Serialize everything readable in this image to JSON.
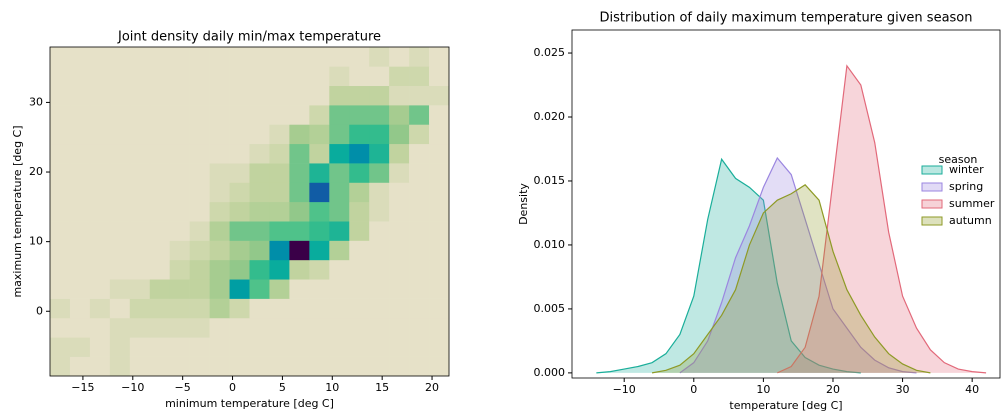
{
  "chart_data": [
    {
      "type": "heatmap",
      "title": "Joint density daily min/max temperature",
      "x_label": "minimum temperature [deg C]",
      "y_label": "maximum temperature [deg C]",
      "xlim": [
        -18.3,
        21.7
      ],
      "ylim": [
        -9.3,
        37.96
      ],
      "xticks": [
        {
          "value": -15,
          "label": "−15"
        },
        {
          "value": -10,
          "label": "−10"
        },
        {
          "value": -5,
          "label": "−5"
        },
        0,
        5,
        10,
        15,
        20
      ],
      "yticks": [
        0,
        10,
        20,
        30
      ],
      "x_bins": [
        -18.3,
        -16.3,
        -14.3,
        -12.3,
        -10.3,
        -8.3,
        -6.3,
        -4.3,
        -2.3,
        -0.3,
        1.7,
        3.7,
        5.7,
        7.7,
        9.7,
        11.7,
        13.7,
        15.7,
        17.7,
        19.7,
        21.7
      ],
      "y_bins": [
        -9.3,
        -6.52,
        -3.74,
        -0.96,
        1.82,
        4.6,
        7.38,
        10.16,
        12.94,
        15.72,
        18.5,
        21.28,
        24.06,
        26.84,
        29.62,
        32.4,
        35.18,
        37.96
      ],
      "colormap": [
        "#e6e1c8",
        "#c3d4a0",
        "#9cc98a",
        "#3cc08a",
        "#00a8a0",
        "#0078b0",
        "#1c4a9e",
        "#3a0048"
      ],
      "values": [
        [
          1,
          0,
          0,
          1,
          0,
          0,
          0,
          0,
          0,
          0,
          0,
          0,
          0,
          0,
          0,
          0,
          0,
          0,
          0,
          0
        ],
        [
          1,
          1,
          0,
          1,
          0,
          0,
          0,
          0,
          0,
          0,
          0,
          0,
          0,
          0,
          0,
          0,
          0,
          0,
          0,
          0
        ],
        [
          0,
          0,
          0,
          1,
          1,
          1,
          1,
          1,
          0,
          0,
          0,
          0,
          0,
          0,
          0,
          0,
          0,
          0,
          0,
          0
        ],
        [
          1,
          0,
          1,
          0,
          2,
          2,
          2,
          2,
          4,
          2,
          0,
          0,
          0,
          0,
          0,
          0,
          0,
          0,
          0,
          0
        ],
        [
          0,
          0,
          0,
          1,
          1,
          3,
          3,
          3,
          5,
          12,
          8,
          4,
          0,
          0,
          0,
          0,
          0,
          0,
          0,
          0
        ],
        [
          0,
          0,
          0,
          0,
          0,
          0,
          2,
          3,
          5,
          6,
          9,
          11,
          3,
          2,
          0,
          0,
          0,
          0,
          0,
          0
        ],
        [
          0,
          0,
          0,
          0,
          0,
          0,
          1,
          2,
          3,
          5,
          6,
          13,
          20,
          11,
          4,
          0,
          0,
          0,
          0,
          0
        ],
        [
          0,
          0,
          0,
          0,
          0,
          0,
          0,
          1,
          4,
          7,
          7,
          8,
          8,
          9,
          10,
          3,
          0,
          0,
          0,
          0
        ],
        [
          0,
          0,
          0,
          0,
          0,
          0,
          0,
          0,
          2,
          3,
          4,
          4,
          6,
          8,
          7,
          3,
          1,
          0,
          0,
          0
        ],
        [
          0,
          0,
          0,
          0,
          0,
          0,
          0,
          0,
          1,
          2,
          3,
          3,
          7,
          16,
          7,
          4,
          1,
          0,
          0,
          0
        ],
        [
          0,
          0,
          0,
          0,
          0,
          0,
          0,
          0,
          1,
          1,
          3,
          3,
          7,
          10,
          7,
          9,
          7,
          1,
          0,
          0
        ],
        [
          0,
          0,
          0,
          0,
          0,
          0,
          0,
          0,
          0,
          0,
          1,
          2,
          7,
          3,
          11,
          13,
          10,
          3,
          0,
          0
        ],
        [
          0,
          0,
          0,
          0,
          0,
          0,
          0,
          0,
          0,
          0,
          0,
          1,
          5,
          4,
          7,
          9,
          9,
          6,
          2,
          0
        ],
        [
          0,
          0,
          0,
          0,
          0,
          0,
          0,
          0,
          0,
          0,
          0,
          0,
          0,
          2,
          7,
          7,
          7,
          5,
          7,
          0
        ],
        [
          0,
          0,
          0,
          0,
          0,
          0,
          0,
          0,
          0,
          0,
          0,
          0,
          0,
          0,
          3,
          3,
          3,
          1,
          1,
          1
        ],
        [
          0,
          0,
          0,
          0,
          0,
          0,
          0,
          0,
          0,
          0,
          0,
          0,
          0,
          0,
          1,
          0,
          0,
          2,
          2,
          0
        ],
        [
          0,
          0,
          0,
          0,
          0,
          0,
          0,
          0,
          0,
          0,
          0,
          0,
          0,
          0,
          0,
          0,
          1,
          0,
          1,
          0
        ]
      ]
    },
    {
      "type": "kde",
      "title": "Distribution of daily maximum temperature given season",
      "x_label": "temperature [deg C]",
      "y_label": "Density",
      "xlim": [
        -17.5,
        44
      ],
      "ylim": [
        -0.0004,
        0.0268
      ],
      "xticks": [
        {
          "value": -10,
          "label": "−10"
        },
        0,
        10,
        20,
        30,
        40
      ],
      "yticks": [
        {
          "value": 0,
          "label": "0.000"
        },
        0.005,
        {
          "value": 0.01,
          "label": "0.010"
        },
        0.015,
        {
          "value": 0.02,
          "label": "0.020"
        },
        0.025
      ],
      "legend_title": "season",
      "legend": "center right",
      "x": [
        -14,
        -12,
        -10,
        -8,
        -6,
        -4,
        -2,
        0,
        2,
        4,
        6,
        8,
        10,
        12,
        14,
        16,
        18,
        20,
        22,
        24,
        26,
        28,
        30,
        32,
        34,
        36,
        38,
        40,
        42
      ],
      "series": [
        {
          "name": "winter",
          "color": "#1aae9a",
          "values": [
            0,
            0.0001,
            0.0003,
            0.0005,
            0.0008,
            0.0015,
            0.003,
            0.006,
            0.012,
            0.0167,
            0.0152,
            0.0145,
            0.0135,
            0.007,
            0.0025,
            0.0012,
            0.0006,
            0.0003,
            0.0001,
            0,
            null,
            null,
            null,
            null,
            null,
            null,
            null,
            null,
            null
          ]
        },
        {
          "name": "spring",
          "color": "#9b86e0",
          "values": [
            null,
            null,
            null,
            null,
            null,
            null,
            0,
            0.0008,
            0.0025,
            0.0055,
            0.009,
            0.0115,
            0.0145,
            0.0168,
            0.0155,
            0.012,
            0.0085,
            0.005,
            0.0035,
            0.002,
            0.001,
            0.0004,
            0.0001,
            0,
            null,
            null,
            null,
            null,
            null
          ]
        },
        {
          "name": "summer",
          "color": "#e2697a",
          "values": [
            null,
            null,
            null,
            null,
            null,
            null,
            null,
            null,
            null,
            null,
            null,
            null,
            null,
            0,
            0.0005,
            0.002,
            0.006,
            0.015,
            0.024,
            0.0225,
            0.018,
            0.011,
            0.006,
            0.0035,
            0.0018,
            0.0008,
            0.0003,
            0.0001,
            0
          ]
        },
        {
          "name": "autumn",
          "color": "#8e9a26",
          "values": [
            null,
            null,
            null,
            null,
            0,
            0.0002,
            0.0006,
            0.0015,
            0.003,
            0.0045,
            0.0065,
            0.01,
            0.0125,
            0.0135,
            0.014,
            0.0147,
            0.0135,
            0.0095,
            0.0065,
            0.0045,
            0.0028,
            0.0015,
            0.0007,
            0.0002,
            0,
            null,
            null,
            null,
            null
          ]
        }
      ]
    }
  ]
}
